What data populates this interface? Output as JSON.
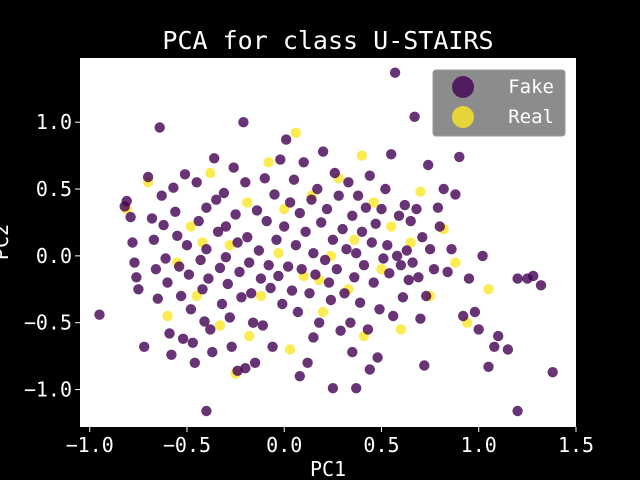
{
  "chart_data": {
    "type": "scatter",
    "title": "PCA for class U-STAIRS",
    "xlabel": "PC1",
    "ylabel": "PC2",
    "xlim": [
      -1.05,
      1.5
    ],
    "ylim": [
      -1.28,
      1.48
    ],
    "x_ticks": [
      -1.0,
      -0.5,
      0.0,
      0.5,
      1.0,
      1.5
    ],
    "x_tick_labels": [
      "−1.0",
      "−0.5",
      "0.0",
      "0.5",
      "1.0",
      "1.5"
    ],
    "y_ticks": [
      -1.0,
      -0.5,
      0.0,
      0.5,
      1.0
    ],
    "y_tick_labels": [
      "−1.0",
      "−0.5",
      "0.0",
      "0.5",
      "1.0"
    ],
    "grid": false,
    "legend_position": "top-right",
    "series": [
      {
        "name": "Fake",
        "color": "#440154",
        "points": [
          [
            -0.95,
            -0.44
          ],
          [
            -0.82,
            0.37
          ],
          [
            -0.81,
            0.41
          ],
          [
            -0.79,
            0.29
          ],
          [
            -0.78,
            0.1
          ],
          [
            -0.77,
            -0.05
          ],
          [
            -0.76,
            -0.16
          ],
          [
            -0.75,
            -0.25
          ],
          [
            -0.72,
            -0.68
          ],
          [
            -0.7,
            0.59
          ],
          [
            -0.68,
            0.28
          ],
          [
            -0.67,
            0.12
          ],
          [
            -0.66,
            -0.1
          ],
          [
            -0.65,
            -0.32
          ],
          [
            -0.64,
            0.96
          ],
          [
            -0.63,
            0.45
          ],
          [
            -0.62,
            0.23
          ],
          [
            -0.61,
            -0.02
          ],
          [
            -0.6,
            -0.2
          ],
          [
            -0.59,
            -0.58
          ],
          [
            -0.58,
            -0.74
          ],
          [
            -0.57,
            0.51
          ],
          [
            -0.56,
            0.33
          ],
          [
            -0.55,
            0.15
          ],
          [
            -0.54,
            -0.08
          ],
          [
            -0.53,
            -0.3
          ],
          [
            -0.52,
            -0.62
          ],
          [
            -0.51,
            0.61
          ],
          [
            -0.5,
            0.08
          ],
          [
            -0.49,
            -0.14
          ],
          [
            -0.48,
            -0.4
          ],
          [
            -0.47,
            -0.65
          ],
          [
            -0.46,
            -0.8
          ],
          [
            -0.45,
            0.55
          ],
          [
            -0.44,
            0.26
          ],
          [
            -0.43,
            -0.03
          ],
          [
            -0.42,
            -0.25
          ],
          [
            -0.41,
            -0.49
          ],
          [
            -0.4,
            0.36
          ],
          [
            -0.4,
            0.05
          ],
          [
            -0.39,
            -0.17
          ],
          [
            -0.38,
            -0.55
          ],
          [
            -0.37,
            -0.72
          ],
          [
            -0.36,
            0.73
          ],
          [
            -0.35,
            0.42
          ],
          [
            -0.34,
            0.18
          ],
          [
            -0.33,
            -0.09
          ],
          [
            -0.32,
            -0.36
          ],
          [
            -0.31,
            0.47
          ],
          [
            -0.3,
            0.22
          ],
          [
            -0.3,
            -0.01
          ],
          [
            -0.29,
            -0.21
          ],
          [
            -0.28,
            -0.46
          ],
          [
            -0.27,
            -0.68
          ],
          [
            -0.26,
            0.66
          ],
          [
            -0.25,
            0.31
          ],
          [
            -0.24,
            0.1
          ],
          [
            -0.23,
            -0.12
          ],
          [
            -0.22,
            -0.31
          ],
          [
            -0.21,
            1.0
          ],
          [
            -0.2,
            0.55
          ],
          [
            -0.19,
            0.14
          ],
          [
            -0.18,
            -0.05
          ],
          [
            -0.17,
            -0.28
          ],
          [
            -0.16,
            -0.5
          ],
          [
            -0.15,
            -0.8
          ],
          [
            -0.14,
            0.34
          ],
          [
            -0.13,
            0.04
          ],
          [
            -0.12,
            -0.17
          ],
          [
            -0.11,
            -0.52
          ],
          [
            -0.1,
            0.58
          ],
          [
            -0.09,
            0.26
          ],
          [
            -0.08,
            -0.07
          ],
          [
            -0.07,
            -0.24
          ],
          [
            -0.06,
            -0.68
          ],
          [
            -0.05,
            0.46
          ],
          [
            -0.04,
            0.12
          ],
          [
            -0.03,
            -0.15
          ],
          [
            -0.02,
            0.72
          ],
          [
            -0.01,
            -0.36
          ],
          [
            0.0,
            0.22
          ],
          [
            0.01,
            0.87
          ],
          [
            0.02,
            -0.08
          ],
          [
            0.03,
            0.4
          ],
          [
            0.04,
            -0.26
          ],
          [
            0.05,
            0.57
          ],
          [
            0.06,
            0.08
          ],
          [
            0.07,
            -0.42
          ],
          [
            0.08,
            0.32
          ],
          [
            0.09,
            -0.1
          ],
          [
            0.1,
            0.7
          ],
          [
            0.11,
            0.18
          ],
          [
            0.12,
            -0.8
          ],
          [
            0.13,
            -0.28
          ],
          [
            0.14,
            0.42
          ],
          [
            0.15,
            0.02
          ],
          [
            0.16,
            -0.14
          ],
          [
            0.17,
            0.5
          ],
          [
            0.18,
            -0.5
          ],
          [
            0.19,
            0.25
          ],
          [
            0.2,
            0.78
          ],
          [
            0.21,
            -0.03
          ],
          [
            0.22,
            0.35
          ],
          [
            0.23,
            -0.2
          ],
          [
            0.24,
            -0.33
          ],
          [
            0.25,
            0.12
          ],
          [
            0.26,
            0.62
          ],
          [
            0.27,
            -0.1
          ],
          [
            0.28,
            0.45
          ],
          [
            0.29,
            -0.56
          ],
          [
            0.3,
            0.2
          ],
          [
            0.31,
            -0.28
          ],
          [
            0.32,
            0.05
          ],
          [
            0.33,
            0.55
          ],
          [
            0.34,
            -0.5
          ],
          [
            0.35,
            0.3
          ],
          [
            0.36,
            -0.16
          ],
          [
            0.37,
            0.02
          ],
          [
            0.38,
            0.45
          ],
          [
            0.39,
            -0.35
          ],
          [
            0.4,
            0.18
          ],
          [
            0.41,
            -0.07
          ],
          [
            0.42,
            0.36
          ],
          [
            0.43,
            -0.55
          ],
          [
            0.44,
            0.6
          ],
          [
            0.45,
            0.1
          ],
          [
            0.46,
            -0.2
          ],
          [
            0.47,
            0.24
          ],
          [
            0.48,
            -0.76
          ],
          [
            0.49,
            -0.4
          ],
          [
            0.5,
            0.35
          ],
          [
            0.51,
            -0.02
          ],
          [
            0.52,
            0.5
          ],
          [
            0.53,
            0.08
          ],
          [
            0.54,
            -0.13
          ],
          [
            0.55,
            0.76
          ],
          [
            0.56,
            -0.45
          ],
          [
            0.57,
            1.37
          ],
          [
            0.58,
            0.0
          ],
          [
            0.59,
            0.3
          ],
          [
            0.6,
            -0.07
          ],
          [
            0.61,
            -0.31
          ],
          [
            0.62,
            0.38
          ],
          [
            0.63,
            0.04
          ],
          [
            0.64,
            -0.18
          ],
          [
            0.65,
            0.26
          ],
          [
            0.66,
            -0.05
          ],
          [
            0.67,
            1.04
          ],
          [
            0.68,
            0.35
          ],
          [
            0.69,
            -0.16
          ],
          [
            0.7,
            -0.47
          ],
          [
            0.71,
            0.14
          ],
          [
            0.72,
            -0.82
          ],
          [
            0.73,
            -0.3
          ],
          [
            0.74,
            0.68
          ],
          [
            0.75,
            0.05
          ],
          [
            0.77,
            -0.1
          ],
          [
            0.79,
            0.36
          ],
          [
            0.8,
            0.22
          ],
          [
            0.82,
            0.5
          ],
          [
            0.84,
            -0.12
          ],
          [
            0.86,
            0.05
          ],
          [
            0.88,
            0.46
          ],
          [
            0.9,
            0.74
          ],
          [
            0.92,
            -0.45
          ],
          [
            0.95,
            -0.17
          ],
          [
            0.98,
            -0.42
          ],
          [
            1.0,
            -0.55
          ],
          [
            1.02,
            0.0
          ],
          [
            1.05,
            -0.83
          ],
          [
            1.08,
            -0.68
          ],
          [
            1.1,
            -0.6
          ],
          [
            1.15,
            -0.7
          ],
          [
            1.2,
            -0.17
          ],
          [
            1.2,
            -1.16
          ],
          [
            1.25,
            -0.17
          ],
          [
            1.28,
            -0.15
          ],
          [
            1.32,
            -0.22
          ],
          [
            1.38,
            -0.87
          ],
          [
            -0.4,
            -1.16
          ],
          [
            0.25,
            -0.99
          ],
          [
            0.37,
            -0.99
          ],
          [
            0.08,
            -0.9
          ],
          [
            -0.2,
            -0.84
          ],
          [
            -0.24,
            -0.86
          ],
          [
            0.44,
            -0.85
          ],
          [
            0.35,
            -0.72
          ],
          [
            0.15,
            -0.61
          ]
        ]
      },
      {
        "name": "Real",
        "color": "#fde725",
        "points": [
          [
            -0.81,
            0.35
          ],
          [
            -0.7,
            0.55
          ],
          [
            -0.55,
            -0.05
          ],
          [
            -0.48,
            0.22
          ],
          [
            -0.45,
            -0.3
          ],
          [
            -0.38,
            0.62
          ],
          [
            -0.33,
            -0.52
          ],
          [
            -0.28,
            0.08
          ],
          [
            -0.25,
            -0.88
          ],
          [
            -0.19,
            0.4
          ],
          [
            -0.12,
            -0.3
          ],
          [
            -0.08,
            0.7
          ],
          [
            -0.03,
            0.02
          ],
          [
            0.03,
            -0.7
          ],
          [
            0.06,
            0.92
          ],
          [
            0.1,
            -0.15
          ],
          [
            0.14,
            0.45
          ],
          [
            0.2,
            -0.42
          ],
          [
            0.24,
            0.0
          ],
          [
            0.28,
            0.58
          ],
          [
            0.33,
            -0.25
          ],
          [
            0.36,
            0.12
          ],
          [
            0.41,
            -0.6
          ],
          [
            0.46,
            0.4
          ],
          [
            0.5,
            -0.1
          ],
          [
            0.55,
            0.22
          ],
          [
            0.6,
            -0.55
          ],
          [
            0.65,
            0.1
          ],
          [
            0.7,
            0.48
          ],
          [
            0.75,
            -0.3
          ],
          [
            0.82,
            0.2
          ],
          [
            0.88,
            -0.05
          ],
          [
            0.94,
            -0.5
          ],
          [
            1.05,
            -0.25
          ],
          [
            -0.6,
            -0.45
          ],
          [
            -0.42,
            0.1
          ],
          [
            -0.18,
            -0.6
          ],
          [
            0.0,
            0.35
          ],
          [
            0.18,
            -0.18
          ],
          [
            0.4,
            0.75
          ]
        ]
      }
    ]
  }
}
